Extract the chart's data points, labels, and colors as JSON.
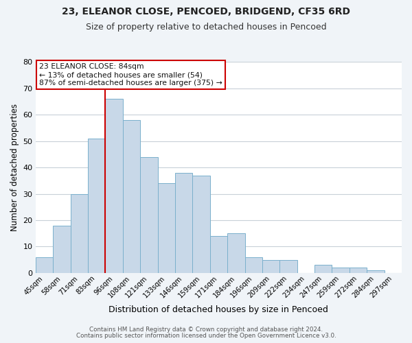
{
  "title": "23, ELEANOR CLOSE, PENCOED, BRIDGEND, CF35 6RD",
  "subtitle": "Size of property relative to detached houses in Pencoed",
  "xlabel": "Distribution of detached houses by size in Pencoed",
  "ylabel": "Number of detached properties",
  "bins": [
    "45sqm",
    "58sqm",
    "71sqm",
    "83sqm",
    "96sqm",
    "108sqm",
    "121sqm",
    "133sqm",
    "146sqm",
    "159sqm",
    "171sqm",
    "184sqm",
    "196sqm",
    "209sqm",
    "222sqm",
    "234sqm",
    "247sqm",
    "259sqm",
    "272sqm",
    "284sqm",
    "297sqm"
  ],
  "values": [
    6,
    18,
    30,
    51,
    66,
    58,
    44,
    34,
    38,
    37,
    14,
    15,
    6,
    5,
    5,
    0,
    3,
    2,
    2,
    1,
    0
  ],
  "bar_color": "#c8d8e8",
  "bar_edge_color": "#7ab0cc",
  "highlight_color": "#cc0000",
  "ylim": [
    0,
    80
  ],
  "yticks": [
    0,
    10,
    20,
    30,
    40,
    50,
    60,
    70,
    80
  ],
  "annotation_title": "23 ELEANOR CLOSE: 84sqm",
  "annotation_line1": "← 13% of detached houses are smaller (54)",
  "annotation_line2": "87% of semi-detached houses are larger (375) →",
  "footer1": "Contains HM Land Registry data © Crown copyright and database right 2024.",
  "footer2": "Contains public sector information licensed under the Open Government Licence v3.0.",
  "background_color": "#f0f4f8",
  "plot_background_color": "#ffffff",
  "grid_color": "#c8d0d8",
  "title_fontsize": 10,
  "subtitle_fontsize": 9
}
